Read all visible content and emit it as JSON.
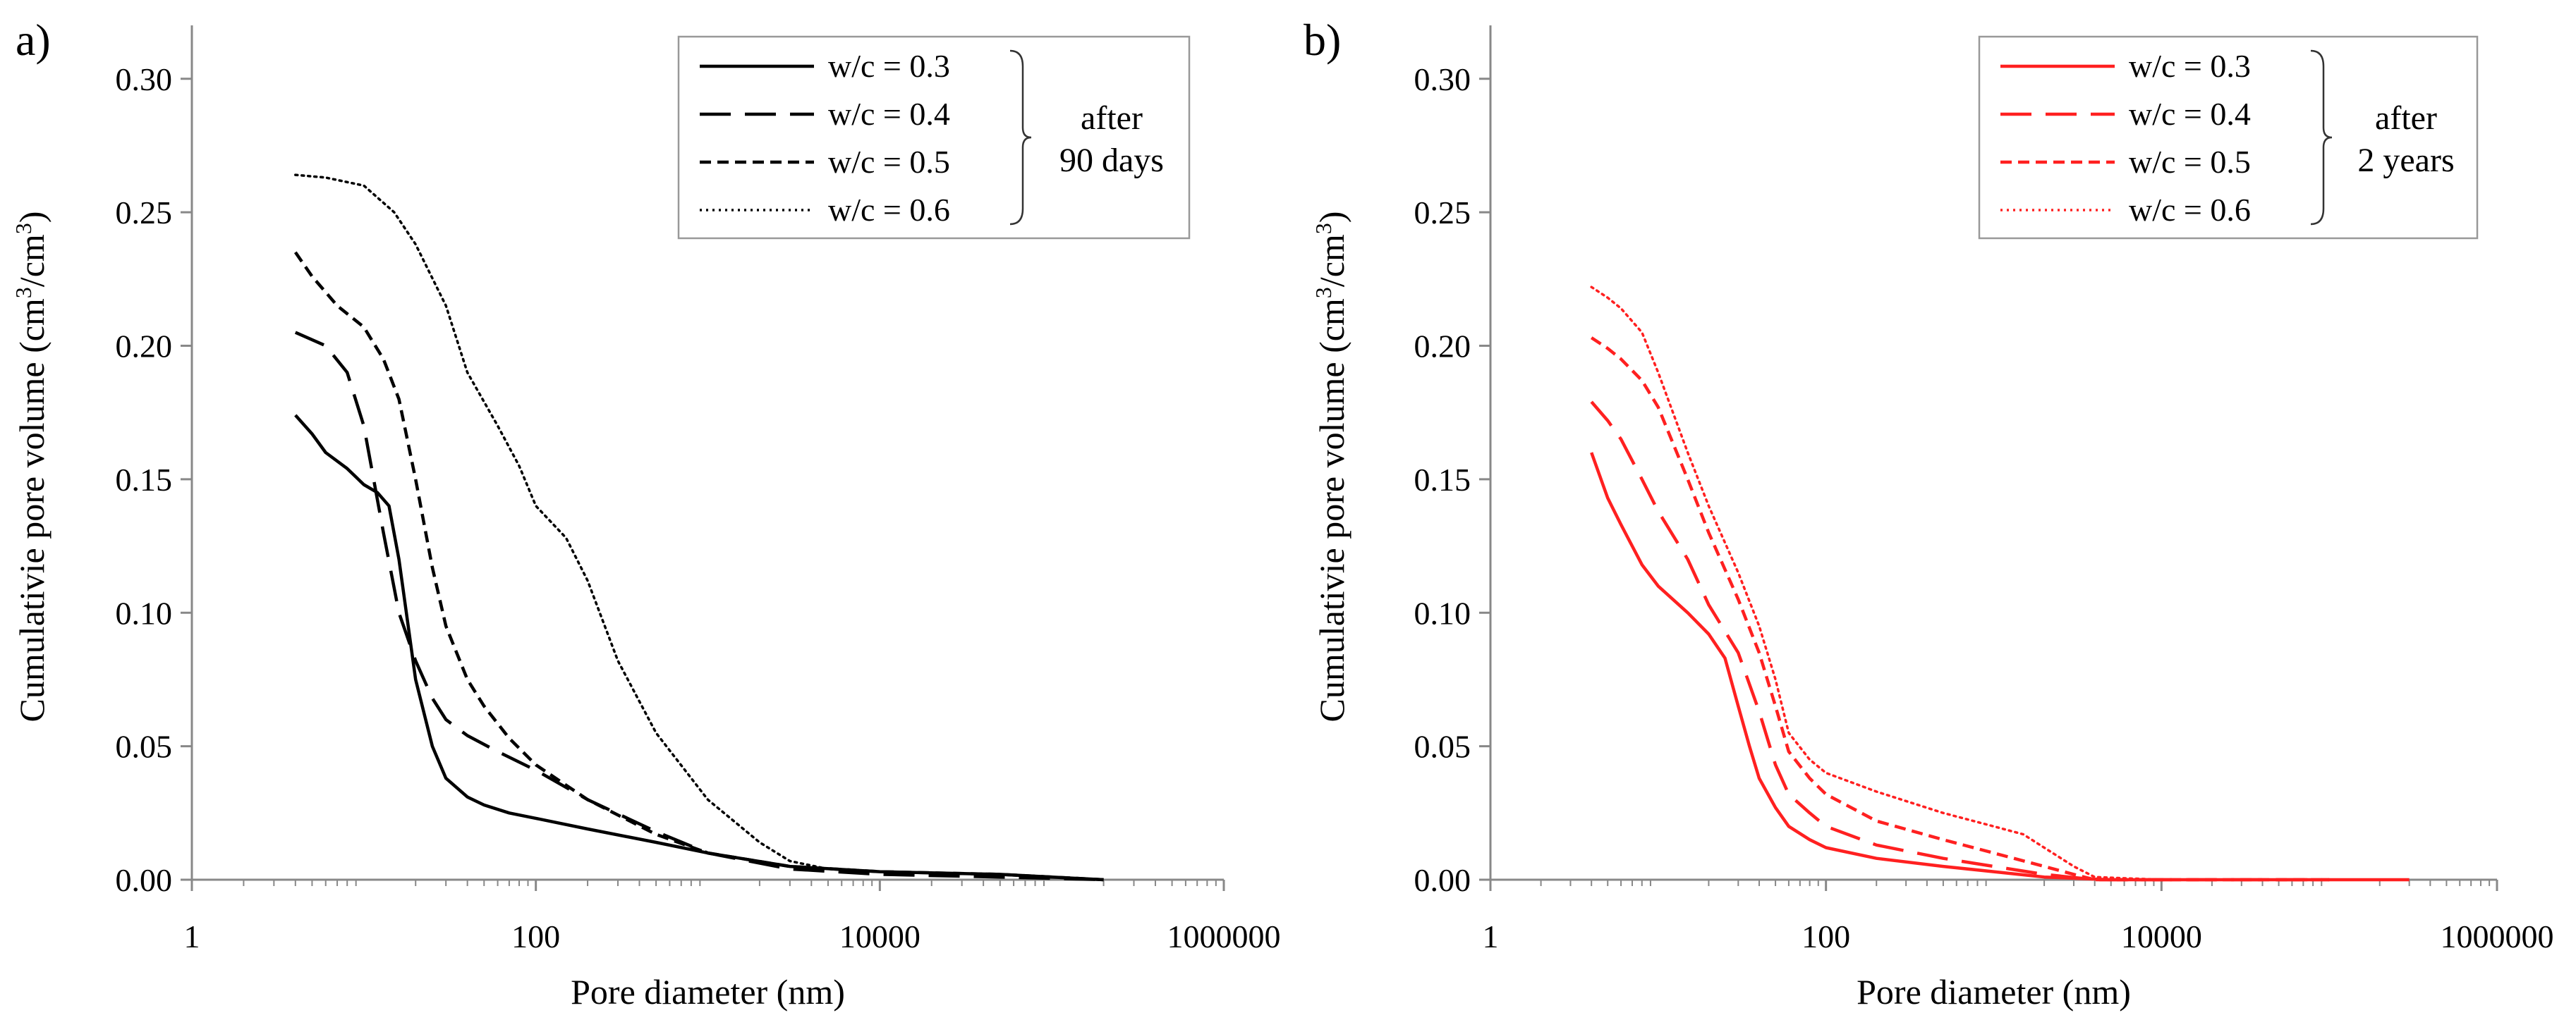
{
  "chart_data": [
    {
      "type": "line",
      "panel_label": "a)",
      "title": "",
      "xlabel": "Pore diameter (nm)",
      "ylabel_main": "Cumulativie pore volume  (cm",
      "ylabel_sup1": "3",
      "ylabel_mid": "/cm",
      "ylabel_sup2": "3",
      "ylabel_end": ")",
      "xscale": "log",
      "xlim": [
        1,
        1000000
      ],
      "ylim": [
        0,
        0.32
      ],
      "xticks": [
        1,
        100,
        10000,
        1000000
      ],
      "xtick_labels": [
        "1",
        "100",
        "10000",
        "1000000"
      ],
      "yticks": [
        0,
        0.05,
        0.1,
        0.15,
        0.2,
        0.25,
        0.3
      ],
      "ytick_labels": [
        "0.00",
        "0.05",
        "0.10",
        "0.15",
        "0.20",
        "0.25",
        "0.30"
      ],
      "color": "#000000",
      "legend_position": "top-right",
      "legend_note": [
        "after",
        "90 days"
      ],
      "series": [
        {
          "name": "w/c = 0.3",
          "style": "solid",
          "x": [
            4,
            5,
            6,
            8,
            10,
            12,
            14,
            16,
            20,
            25,
            30,
            40,
            50,
            70,
            100,
            200,
            500,
            1000,
            3000,
            10000,
            50000,
            200000
          ],
          "y": [
            0.174,
            0.167,
            0.16,
            0.154,
            0.148,
            0.145,
            0.14,
            0.12,
            0.075,
            0.05,
            0.038,
            0.031,
            0.028,
            0.025,
            0.023,
            0.019,
            0.014,
            0.01,
            0.005,
            0.003,
            0.002,
            0.0
          ]
        },
        {
          "name": "w/c = 0.4",
          "style": "dashed",
          "x": [
            4,
            6,
            8,
            10,
            13,
            16,
            20,
            25,
            30,
            40,
            60,
            100,
            200,
            500,
            1000,
            3000,
            10000,
            50000,
            200000
          ],
          "y": [
            0.205,
            0.2,
            0.19,
            0.17,
            0.13,
            0.1,
            0.082,
            0.068,
            0.06,
            0.054,
            0.048,
            0.041,
            0.03,
            0.018,
            0.01,
            0.004,
            0.002,
            0.001,
            0.0
          ]
        },
        {
          "name": "w/c = 0.5",
          "style": "short-dashed",
          "x": [
            4,
            5,
            7,
            10,
            13,
            16,
            20,
            25,
            30,
            40,
            50,
            70,
            100,
            200,
            500,
            1000,
            3000,
            10000,
            50000,
            200000
          ],
          "y": [
            0.235,
            0.226,
            0.215,
            0.207,
            0.195,
            0.18,
            0.15,
            0.117,
            0.095,
            0.075,
            0.065,
            0.053,
            0.043,
            0.03,
            0.017,
            0.01,
            0.005,
            0.003,
            0.002,
            0.0
          ]
        },
        {
          "name": "w/c = 0.6",
          "style": "dotted",
          "x": [
            4,
            6,
            10,
            15,
            20,
            30,
            40,
            60,
            80,
            100,
            150,
            200,
            300,
            500,
            1000,
            2000,
            3000,
            5000,
            10000,
            50000,
            200000
          ],
          "y": [
            0.264,
            0.263,
            0.26,
            0.25,
            0.238,
            0.215,
            0.19,
            0.17,
            0.155,
            0.14,
            0.128,
            0.112,
            0.082,
            0.055,
            0.03,
            0.014,
            0.007,
            0.004,
            0.003,
            0.002,
            0.0
          ]
        }
      ]
    },
    {
      "type": "line",
      "panel_label": "b)",
      "title": "",
      "xlabel": "Pore diameter (nm)",
      "ylabel_main": "Cumulativie pore volume  (cm",
      "ylabel_sup1": "3",
      "ylabel_mid": "/cm",
      "ylabel_sup2": "3",
      "ylabel_end": ")",
      "xscale": "log",
      "xlim": [
        1,
        1000000
      ],
      "ylim": [
        0,
        0.32
      ],
      "xticks": [
        1,
        100,
        10000,
        1000000
      ],
      "xtick_labels": [
        "1",
        "100",
        "10000",
        "1000000"
      ],
      "yticks": [
        0,
        0.05,
        0.1,
        0.15,
        0.2,
        0.25,
        0.3
      ],
      "ytick_labels": [
        "0.00",
        "0.05",
        "0.10",
        "0.15",
        "0.20",
        "0.25",
        "0.30"
      ],
      "color": "#ff2020",
      "legend_position": "top-right",
      "legend_note": [
        "after",
        "2 years"
      ],
      "series": [
        {
          "name": "w/c = 0.3",
          "style": "solid",
          "x": [
            4,
            5,
            6,
            8,
            10,
            15,
            20,
            25,
            30,
            35,
            40,
            50,
            60,
            80,
            100,
            200,
            500,
            1000,
            2000,
            5000,
            10000,
            100000,
            300000
          ],
          "y": [
            0.16,
            0.143,
            0.133,
            0.118,
            0.11,
            0.1,
            0.092,
            0.083,
            0.065,
            0.05,
            0.038,
            0.027,
            0.02,
            0.015,
            0.012,
            0.008,
            0.005,
            0.003,
            0.001,
            0.0,
            0.0,
            0.0,
            0.0
          ]
        },
        {
          "name": "w/c = 0.4",
          "style": "dashed",
          "x": [
            4,
            5,
            6,
            8,
            10,
            15,
            20,
            30,
            40,
            50,
            60,
            80,
            100,
            200,
            500,
            1000,
            2000,
            4000,
            10000,
            100000
          ],
          "y": [
            0.179,
            0.172,
            0.165,
            0.15,
            0.138,
            0.12,
            0.103,
            0.085,
            0.063,
            0.043,
            0.032,
            0.025,
            0.02,
            0.013,
            0.008,
            0.005,
            0.002,
            0.0,
            0.0,
            0.0
          ]
        },
        {
          "name": "w/c = 0.5",
          "style": "short-dashed",
          "x": [
            4,
            5,
            6,
            8,
            10,
            15,
            20,
            30,
            40,
            50,
            60,
            80,
            100,
            200,
            500,
            1000,
            2000,
            3000,
            4000,
            10000,
            100000
          ],
          "y": [
            0.203,
            0.199,
            0.195,
            0.187,
            0.177,
            0.15,
            0.13,
            0.105,
            0.085,
            0.065,
            0.048,
            0.038,
            0.032,
            0.022,
            0.015,
            0.01,
            0.005,
            0.002,
            0.0,
            0.0,
            0.0
          ]
        },
        {
          "name": "w/c = 0.6",
          "style": "dotted",
          "x": [
            4,
            5,
            6,
            8,
            10,
            15,
            20,
            30,
            40,
            50,
            60,
            80,
            100,
            200,
            500,
            1000,
            1500,
            2000,
            3000,
            4000,
            10000,
            100000
          ],
          "y": [
            0.222,
            0.218,
            0.214,
            0.205,
            0.19,
            0.16,
            0.14,
            0.115,
            0.095,
            0.075,
            0.055,
            0.045,
            0.04,
            0.033,
            0.025,
            0.02,
            0.017,
            0.012,
            0.005,
            0.001,
            0.0,
            0.0
          ]
        }
      ]
    }
  ]
}
